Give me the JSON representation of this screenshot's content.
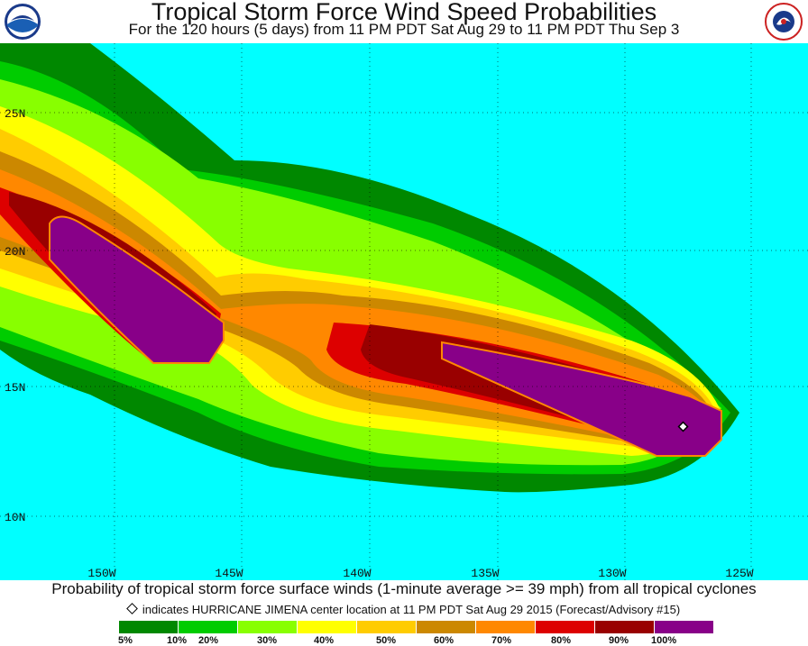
{
  "header": {
    "title": "Tropical Storm Force Wind Speed Probabilities",
    "subtitle": "For the 120 hours (5 days) from 11 PM PDT Sat Aug 29 to 11 PM PDT Thu Sep 3"
  },
  "logos": {
    "left": {
      "text": "NOAA"
    },
    "right": {
      "text": "NATIONAL WEATHER SERVICE"
    }
  },
  "map": {
    "background": "#00ffff",
    "lat_labels": [
      "25N",
      "20N",
      "15N",
      "10N"
    ],
    "lon_labels": [
      "150W",
      "145W",
      "140W",
      "135W",
      "130W",
      "125W"
    ],
    "storm_marker": "diamond-icon"
  },
  "footer": {
    "caption": "Probability of tropical storm force surface winds (1-minute average >= 39 mph) from all tropical cyclones",
    "note": "indicates HURRICANE JIMENA center location at 11 PM PDT Sat Aug 29 2015 (Forecast/Advisory #15)"
  },
  "legend": {
    "colors": [
      "#008800",
      "#00cc00",
      "#88ff00",
      "#ffff00",
      "#ffcc00",
      "#cc8800",
      "#ff8800",
      "#dd0000",
      "#990000",
      "#880088"
    ],
    "labels": [
      "5%",
      "10%",
      "20%",
      "30%",
      "40%",
      "50%",
      "60%",
      "70%",
      "80%",
      "90%",
      "100%"
    ]
  }
}
